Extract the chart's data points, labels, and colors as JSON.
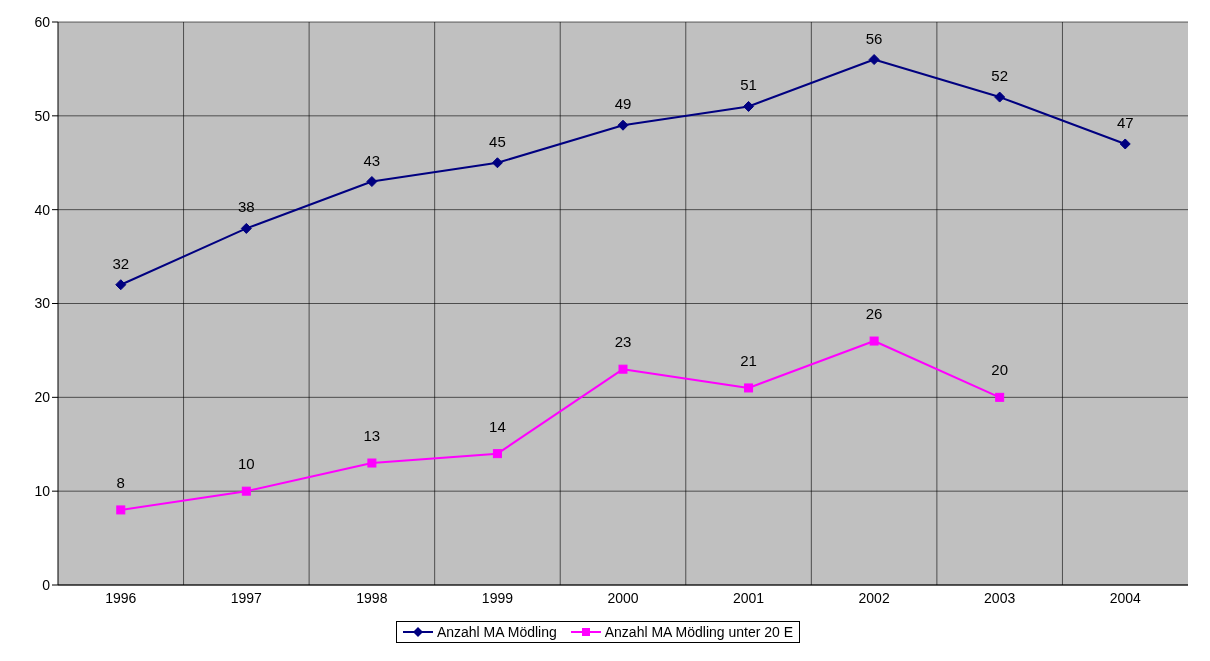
{
  "chart_data": {
    "type": "line",
    "categories": [
      "1996",
      "1997",
      "1998",
      "1999",
      "2000",
      "2001",
      "2002",
      "2003",
      "2004"
    ],
    "series": [
      {
        "name": "Anzahl MA Mödling",
        "color": "#000080",
        "marker": "diamond",
        "values": [
          32,
          38,
          43,
          45,
          49,
          51,
          56,
          52,
          47
        ]
      },
      {
        "name": "Anzahl MA Mödling unter 20 E",
        "color": "#ff00ff",
        "marker": "square",
        "values": [
          8,
          10,
          13,
          14,
          23,
          21,
          26,
          20,
          null
        ]
      }
    ],
    "ylim": [
      0,
      60
    ],
    "yticks": [
      0,
      10,
      20,
      30,
      40,
      50,
      60
    ],
    "grid": true,
    "legend": "bottom",
    "data_labels": true
  }
}
